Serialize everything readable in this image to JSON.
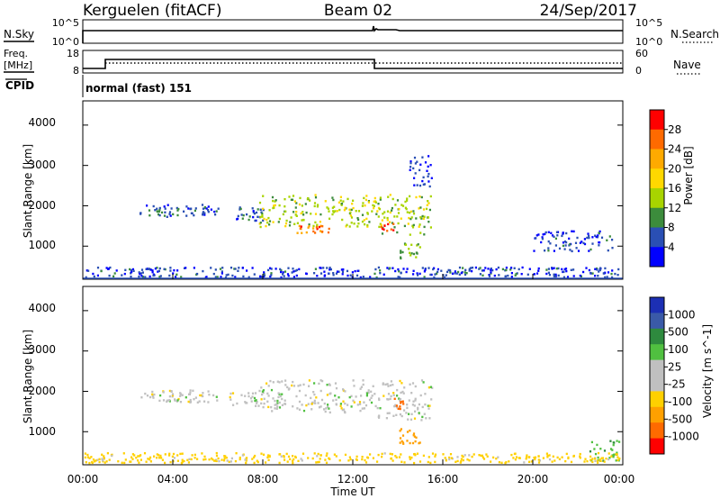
{
  "header": {
    "station": "Kerguelen (fitACF)",
    "beam": "Beam 02",
    "date": "24/Sep/2017"
  },
  "sky_panel": {
    "left_label": "N.Sky",
    "right_label": "N.Search",
    "left_ticks": [
      "10^5",
      "10^0"
    ],
    "right_ticks": [
      "10^5",
      "10^0"
    ]
  },
  "freq_panel": {
    "left_label_1": "Freq.",
    "left_label_2": "[MHz]",
    "right_label": "Nave",
    "left_ticks": [
      "18",
      "8"
    ],
    "right_ticks": [
      "60",
      "0"
    ],
    "cpid_label": "CPID",
    "mode_text": "normal (fast) 151"
  },
  "x_axis": {
    "label": "Time UT",
    "ticks": [
      "00:00",
      "04:00",
      "08:00",
      "12:00",
      "16:00",
      "20:00",
      "00:00"
    ]
  },
  "power_panel": {
    "ylabel": "Slant Range [km]",
    "yticks": [
      "4000",
      "3000",
      "2000",
      "1000"
    ],
    "cbar_label": "Power [dB]",
    "cbar_ticks": [
      "28",
      "24",
      "20",
      "16",
      "12",
      "8",
      "4"
    ],
    "cbar_colors": [
      "#ff0000",
      "#ff6a00",
      "#ffaa00",
      "#ffd800",
      "#a8d400",
      "#3c8c3c",
      "#2a4fb4",
      "#0000ff"
    ]
  },
  "velocity_panel": {
    "ylabel": "Slant Range [km]",
    "yticks": [
      "4000",
      "3000",
      "2000",
      "1000"
    ],
    "cbar_label": "Velocity [m s^-1]",
    "cbar_ticks": [
      "1000",
      "500",
      "100",
      "25",
      "-25",
      "-100",
      "-500",
      "-1000"
    ],
    "cbar_colors": [
      "#1c2fb4",
      "#3a5aa8",
      "#2e8a3e",
      "#50c040",
      "#c0c0c0",
      "#c0c0c0",
      "#ffd000",
      "#ffa000",
      "#ff6a00",
      "#ff0000"
    ]
  },
  "chart_data": [
    {
      "type": "heatmap",
      "title": "Power [dB]",
      "xlabel": "Time UT",
      "ylabel": "Slant Range [km]",
      "x_range_hours": [
        0,
        24
      ],
      "ylim": [
        180,
        4600
      ],
      "colorbar_range": [
        0,
        32
      ],
      "echo_regions": [
        {
          "t_start": 2.5,
          "t_end": 6.0,
          "range_start": 1750,
          "range_end": 2050,
          "power": 6
        },
        {
          "t_start": 6.5,
          "t_end": 8.0,
          "range_start": 1650,
          "range_end": 2000,
          "power": 6
        },
        {
          "t_start": 7.8,
          "t_end": 13.0,
          "range_start": 1500,
          "range_end": 2300,
          "power": 14
        },
        {
          "t_start": 9.5,
          "t_end": 11.0,
          "range_start": 1350,
          "range_end": 1550,
          "power": 26
        },
        {
          "t_start": 13.0,
          "t_end": 15.5,
          "range_start": 1300,
          "range_end": 2300,
          "power": 14
        },
        {
          "t_start": 13.2,
          "t_end": 13.8,
          "range_start": 1350,
          "range_end": 1600,
          "power": 28
        },
        {
          "t_start": 14.0,
          "t_end": 15.0,
          "range_start": 700,
          "range_end": 1100,
          "power": 12
        },
        {
          "t_start": 14.5,
          "t_end": 15.5,
          "range_start": 2500,
          "range_end": 3300,
          "power": 4
        },
        {
          "t_start": 20.0,
          "t_end": 23.5,
          "range_start": 900,
          "range_end": 1400,
          "power": 5
        },
        {
          "t_start": 0.0,
          "t_end": 24.0,
          "range_start": 180,
          "range_end": 500,
          "power": 5
        }
      ]
    },
    {
      "type": "heatmap",
      "title": "Velocity [m s^-1]",
      "xlabel": "Time UT",
      "ylabel": "Slant Range [km]",
      "x_range_hours": [
        0,
        24
      ],
      "ylim": [
        180,
        4600
      ],
      "colorbar_range": [
        -1000,
        1000
      ],
      "echo_regions": [
        {
          "t_start": 2.5,
          "t_end": 6.0,
          "range_start": 1750,
          "range_end": 2050,
          "velocity": 0
        },
        {
          "t_start": 6.5,
          "t_end": 8.0,
          "range_start": 1650,
          "range_end": 2000,
          "velocity": 0
        },
        {
          "t_start": 7.8,
          "t_end": 13.0,
          "range_start": 1500,
          "range_end": 2300,
          "velocity": 0
        },
        {
          "t_start": 13.0,
          "t_end": 15.5,
          "range_start": 1300,
          "range_end": 2300,
          "velocity": 0
        },
        {
          "t_start": 13.8,
          "t_end": 14.3,
          "range_start": 1500,
          "range_end": 1900,
          "velocity": -700
        },
        {
          "t_start": 14.0,
          "t_end": 15.0,
          "range_start": 700,
          "range_end": 1100,
          "velocity": -150
        },
        {
          "t_start": 22.5,
          "t_end": 24.0,
          "range_start": 300,
          "range_end": 800,
          "velocity": 80
        },
        {
          "t_start": 0.0,
          "t_end": 24.0,
          "range_start": 180,
          "range_end": 500,
          "velocity": -50
        }
      ]
    }
  ]
}
